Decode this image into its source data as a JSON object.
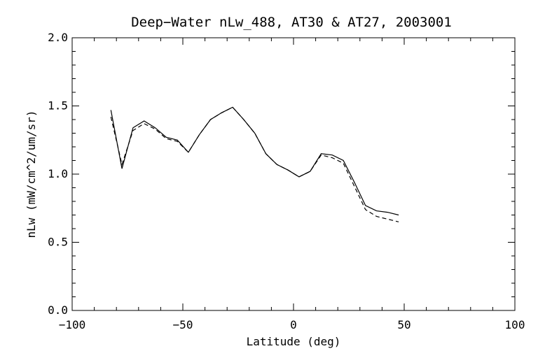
{
  "chart_data": {
    "type": "line",
    "title": "Deep−Water nLw_488, AT30 & AT27, 2003001",
    "xlabel": "Latitude (deg)",
    "ylabel": "nLw (mW/cm^2/um/sr)",
    "xlim": [
      -100,
      100
    ],
    "ylim": [
      0.0,
      2.0
    ],
    "x_major_ticks": [
      -100,
      -50,
      0,
      50,
      100
    ],
    "x_tick_labels": [
      "−100",
      "−50",
      "0",
      "50",
      "100"
    ],
    "y_major_ticks": [
      0.0,
      0.5,
      1.0,
      1.5,
      2.0
    ],
    "y_tick_labels": [
      "0.0",
      "0.5",
      "1.0",
      "1.5",
      "2.0"
    ],
    "x_minor_step": 10,
    "y_minor_step": 0.1,
    "grid": false,
    "legend": "none",
    "series": [
      {
        "style": "solid",
        "x": [
          -82.5,
          -77.5,
          -72.5,
          -67.5,
          -62.5,
          -57.5,
          -52.5,
          -47.5,
          -42.5,
          -37.5,
          -32.5,
          -27.5,
          -22.5,
          -17.5,
          -12.5,
          -7.5,
          -2.5,
          2.5,
          7.5,
          12.5,
          17.5,
          22.5,
          27.5,
          32.5,
          37.5,
          42.5,
          47.5
        ],
        "y": [
          1.47,
          1.04,
          1.34,
          1.39,
          1.34,
          1.27,
          1.25,
          1.16,
          1.29,
          1.4,
          1.45,
          1.49,
          1.4,
          1.3,
          1.15,
          1.07,
          1.03,
          0.98,
          1.02,
          1.15,
          1.14,
          1.1,
          0.94,
          0.77,
          0.73,
          0.72,
          0.7
        ]
      },
      {
        "style": "dashed",
        "x": [
          -82.5,
          -77.5,
          -72.5,
          -67.5,
          -62.5,
          -57.5,
          -52.5,
          -47.5,
          -42.5,
          -37.5,
          -32.5,
          -27.5,
          -22.5,
          -17.5,
          -12.5,
          -7.5,
          -2.5,
          2.5,
          7.5,
          12.5,
          17.5,
          22.5,
          27.5,
          32.5,
          37.5,
          42.5,
          47.5
        ],
        "y": [
          1.42,
          1.07,
          1.32,
          1.37,
          1.33,
          1.26,
          1.24,
          1.16,
          1.29,
          1.4,
          1.45,
          1.49,
          1.4,
          1.3,
          1.15,
          1.07,
          1.03,
          0.98,
          1.02,
          1.14,
          1.12,
          1.08,
          0.91,
          0.74,
          0.69,
          0.67,
          0.65
        ]
      }
    ]
  }
}
